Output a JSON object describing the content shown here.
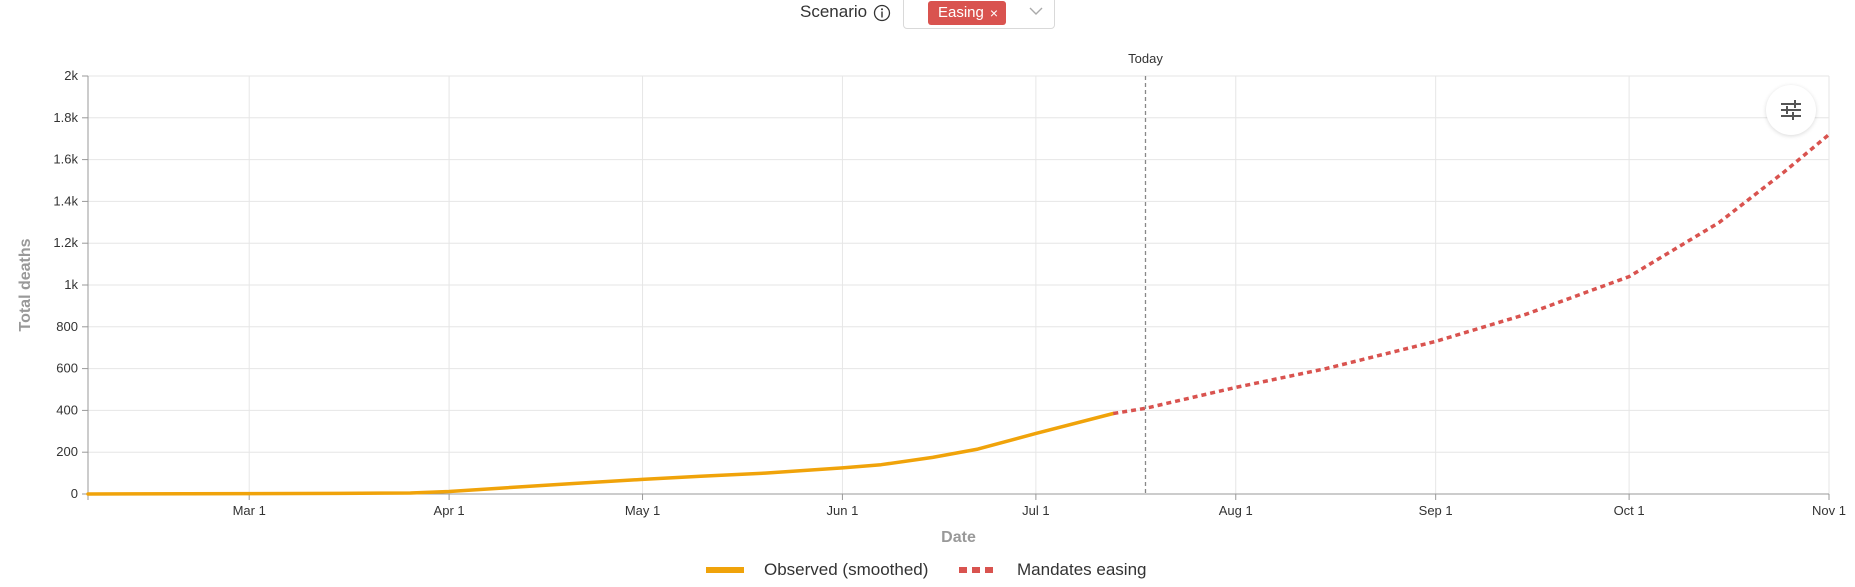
{
  "scenario": {
    "label": "Scenario",
    "selected_tag": "Easing",
    "close_glyph": "×"
  },
  "icons": {
    "info": "info-icon",
    "remove": "close-icon",
    "dropdown": "chevron-down-icon",
    "settings": "sliders-icon"
  },
  "colors": {
    "observed": "#f0a30a",
    "easing": "#d9534f",
    "tag_bg": "#d9534f",
    "grid": "#e6e6e6",
    "today_line": "#888888"
  },
  "chart_data": {
    "type": "line",
    "xlabel": "Date",
    "ylabel": "Total deaths",
    "x_tick_labels": [
      "Mar 1",
      "Apr 1",
      "May 1",
      "Jun 1",
      "Jul 1",
      "Aug 1",
      "Sep 1",
      "Oct 1",
      "Nov 1"
    ],
    "x_ticks": [
      "2020-03-01",
      "2020-04-01",
      "2020-05-01",
      "2020-06-01",
      "2020-07-01",
      "2020-08-01",
      "2020-09-01",
      "2020-10-01",
      "2020-11-01"
    ],
    "y_ticks": [
      0,
      200,
      400,
      600,
      800,
      1000,
      1200,
      1400,
      1600,
      1800,
      2000
    ],
    "y_tick_labels": [
      "0",
      "200",
      "400",
      "600",
      "800",
      "1k",
      "1.2k",
      "1.4k",
      "1.6k",
      "1.8k",
      "2k"
    ],
    "xlim": [
      "2020-02-05",
      "2020-11-01"
    ],
    "ylim": [
      0,
      2000
    ],
    "grid": true,
    "legend_position": "bottom",
    "annotation": {
      "label": "Today",
      "x": "2020-07-18"
    },
    "series": [
      {
        "name": "Observed (smoothed)",
        "style": "solid",
        "points": [
          [
            "2020-02-05",
            0
          ],
          [
            "2020-03-01",
            2
          ],
          [
            "2020-03-15",
            3
          ],
          [
            "2020-03-26",
            5
          ],
          [
            "2020-04-01",
            12
          ],
          [
            "2020-04-10",
            30
          ],
          [
            "2020-04-20",
            50
          ],
          [
            "2020-05-01",
            70
          ],
          [
            "2020-05-10",
            85
          ],
          [
            "2020-05-20",
            100
          ],
          [
            "2020-06-01",
            125
          ],
          [
            "2020-06-07",
            140
          ],
          [
            "2020-06-15",
            175
          ],
          [
            "2020-06-22",
            215
          ],
          [
            "2020-07-01",
            290
          ],
          [
            "2020-07-13",
            385
          ]
        ]
      },
      {
        "name": "Mandates easing",
        "style": "dashed",
        "points": [
          [
            "2020-07-13",
            385
          ],
          [
            "2020-07-18",
            410
          ],
          [
            "2020-08-01",
            510
          ],
          [
            "2020-08-15",
            600
          ],
          [
            "2020-09-01",
            730
          ],
          [
            "2020-09-15",
            860
          ],
          [
            "2020-10-01",
            1040
          ],
          [
            "2020-10-15",
            1300
          ],
          [
            "2020-10-25",
            1540
          ],
          [
            "2020-11-01",
            1720
          ]
        ]
      }
    ]
  }
}
